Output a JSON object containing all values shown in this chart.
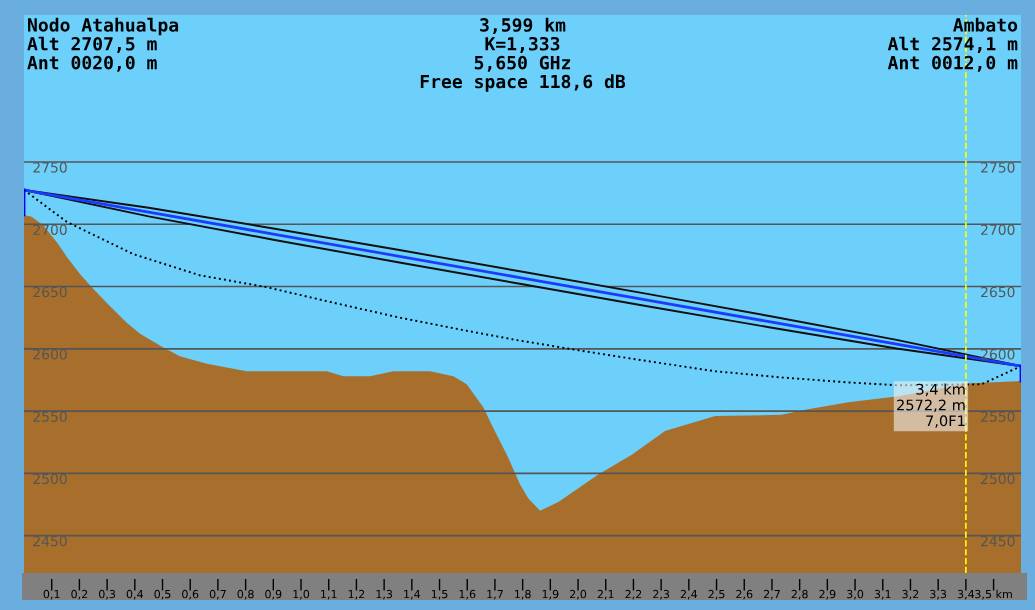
{
  "chart_data": {
    "type": "area",
    "annotations": [
      "Nodo Atahualpa\nAlt 2707,5 m\nAnt 0020,0 m",
      "3,599 km\nK=1,333\n5,650 GHz\nFree space 118,6 dB",
      "Ambato\nAlt 2574,1 m\nAnt 0012,0 m",
      {
        "text": "3,4 km\n2572,2 m\n7,0F1",
        "x": 3.4,
        "y": 2572.2
      }
    ],
    "series": [
      {
        "color": "#a86f2c",
        "x": [
          0,
          0.028,
          0.07,
          0.124,
          0.154,
          0.202,
          0.238,
          0.298,
          0.371,
          0.419,
          0.503,
          0.563,
          0.66,
          0.804,
          1.093,
          1.153,
          1.249,
          1.333,
          1.466,
          1.55,
          1.598,
          1.658,
          1.694,
          1.743,
          1.791,
          1.82,
          1.863,
          1.929,
          2.073,
          2.194,
          2.314,
          2.374,
          2.495,
          2.735,
          2.82,
          2.976,
          3.156,
          3.4,
          3.599
        ],
        "values": [
          2707.5,
          2706,
          2699,
          2684,
          2674,
          2660,
          2651,
          2637,
          2621,
          2612,
          2601,
          2594,
          2588,
          2582,
          2582,
          2578,
          2578,
          2582,
          2582,
          2578,
          2571.5,
          2553,
          2536.5,
          2515,
          2491,
          2480,
          2470,
          2477,
          2499,
          2515,
          2534,
          2538,
          2546,
          2547,
          2551,
          2557,
          2562,
          2572.2,
          2574.1
        ]
      },
      {
        "type": "line",
        "color": "#1a3cff",
        "x": [
          0,
          0.45,
          0.9,
          1.35,
          1.8,
          2.25,
          2.7,
          3.15,
          3.599
        ],
        "values": [
          2727.5,
          2709.8,
          2692.1,
          2674.5,
          2656.8,
          2639.1,
          2621.4,
          2603.7,
          2586.1
        ],
        "lower": [
          2727.5,
          2706.3,
          2687.6,
          2669.5,
          2651.8,
          2634.1,
          2616.9,
          2600.2,
          2586.1
        ],
        "upper": [
          2727.5,
          2713.3,
          2696.6,
          2679.5,
          2661.8,
          2644.1,
          2625.9,
          2607.2,
          2586.1
        ]
      },
      {
        "type": "line",
        "line_style": "dotted",
        "color": "#000000",
        "x": [
          0,
          0.154,
          0.395,
          0.635,
          0.876,
          1.117,
          1.357,
          1.598,
          1.779,
          2.013,
          2.254,
          2.495,
          2.735,
          2.976,
          3.156,
          3.457,
          3.599
        ],
        "values": [
          2727.5,
          2702,
          2676,
          2659,
          2649.5,
          2637,
          2625,
          2614.5,
          2607,
          2598.4,
          2590,
          2582,
          2577,
          2573,
          2570.7,
          2571.5,
          2586.1
        ]
      },
      {
        "type": "line",
        "color": "#0000ff",
        "x": [
          0,
          0
        ],
        "values": [
          2707.5,
          2727.5
        ]
      },
      {
        "type": "line",
        "color": "#0000ff",
        "x": [
          3.599,
          3.599
        ],
        "values": [
          2574.1,
          2586.1
        ]
      }
    ],
    "xlim": [
      0,
      3.599
    ],
    "ylim": [
      2420,
      2868
    ],
    "y2lim": [
      2420,
      2868
    ],
    "xticks": [
      {
        "value": 0.1,
        "label": "0,1"
      },
      {
        "value": 0.2,
        "label": "0,2"
      },
      {
        "value": 0.3,
        "label": "0,3"
      },
      {
        "value": 0.4,
        "label": "0,4"
      },
      {
        "value": 0.5,
        "label": "0,5"
      },
      {
        "value": 0.6,
        "label": "0,6"
      },
      {
        "value": 0.7,
        "label": "0,7"
      },
      {
        "value": 0.8,
        "label": "0,8"
      },
      {
        "value": 0.9,
        "label": "0,9"
      },
      {
        "value": 1.0,
        "label": "1,0"
      },
      {
        "value": 1.1,
        "label": "1,1"
      },
      {
        "value": 1.2,
        "label": "1,2"
      },
      {
        "value": 1.3,
        "label": "1,3"
      },
      {
        "value": 1.4,
        "label": "1,4"
      },
      {
        "value": 1.5,
        "label": "1,5"
      },
      {
        "value": 1.6,
        "label": "1,6"
      },
      {
        "value": 1.7,
        "label": "1,7"
      },
      {
        "value": 1.8,
        "label": "1,8"
      },
      {
        "value": 1.9,
        "label": "1,9"
      },
      {
        "value": 2.0,
        "label": "2,0"
      },
      {
        "value": 2.1,
        "label": "2,1"
      },
      {
        "value": 2.2,
        "label": "2,2"
      },
      {
        "value": 2.3,
        "label": "2,3"
      },
      {
        "value": 2.4,
        "label": "2,4"
      },
      {
        "value": 2.5,
        "label": "2,5"
      },
      {
        "value": 2.6,
        "label": "2,6"
      },
      {
        "value": 2.7,
        "label": "2,7"
      },
      {
        "value": 2.8,
        "label": "2,8"
      },
      {
        "value": 2.9,
        "label": "2,9"
      },
      {
        "value": 3.0,
        "label": "3,0"
      },
      {
        "value": 3.1,
        "label": "3,1"
      },
      {
        "value": 3.2,
        "label": "3,2"
      },
      {
        "value": 3.3,
        "label": "3,3"
      },
      {
        "value": 3.4,
        "label": "3,4"
      },
      {
        "value": 3.5,
        "label": "3,5 km"
      }
    ],
    "yticks": [
      2450,
      2500,
      2550,
      2600,
      2650,
      2700,
      2750
    ],
    "y2ticks": [
      2450,
      2500,
      2550,
      2600,
      2650,
      2700,
      2750
    ],
    "ref_lines": [
      {
        "axis": "x",
        "value": 3.4,
        "color": "#ffff00",
        "line_style": "dashed"
      }
    ],
    "grid": "y",
    "legend": false
  }
}
